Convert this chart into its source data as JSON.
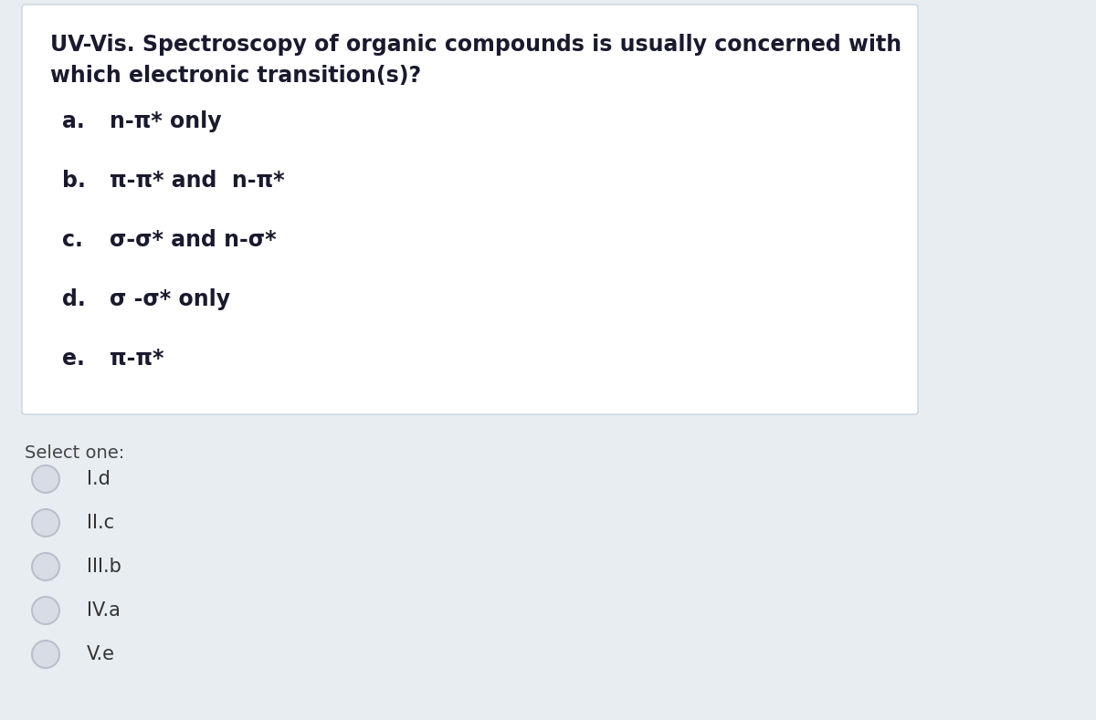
{
  "background_color": "#e8edf2",
  "box_background": "#ffffff",
  "box_border_color": "#c8d4e0",
  "title_line1": "UV-Vis. Spectroscopy of organic compounds is usually concerned with",
  "title_line2": "which electronic transition(s)?",
  "options": [
    {
      "label": "a.",
      "text": "n-π* only"
    },
    {
      "label": "b.",
      "text": "π-π* and  n-π*"
    },
    {
      "label": "c.",
      "text": "σ-σ* and n-σ*"
    },
    {
      "label": "d.",
      "text": "σ -σ* only"
    },
    {
      "label": "e.",
      "text": "π-π*"
    }
  ],
  "select_one_text": "Select one:",
  "radio_options": [
    "I.d",
    "II.c",
    "III.b",
    "IV.a",
    "V.e"
  ],
  "title_fontsize": 17,
  "option_fontsize": 17,
  "select_fontsize": 14,
  "radio_fontsize": 15,
  "text_color": "#1a1a2e",
  "select_color": "#444444",
  "radio_color": "#333333",
  "radio_circle_color": "#d8dde5",
  "radio_circle_edge": "#b8c0cc"
}
